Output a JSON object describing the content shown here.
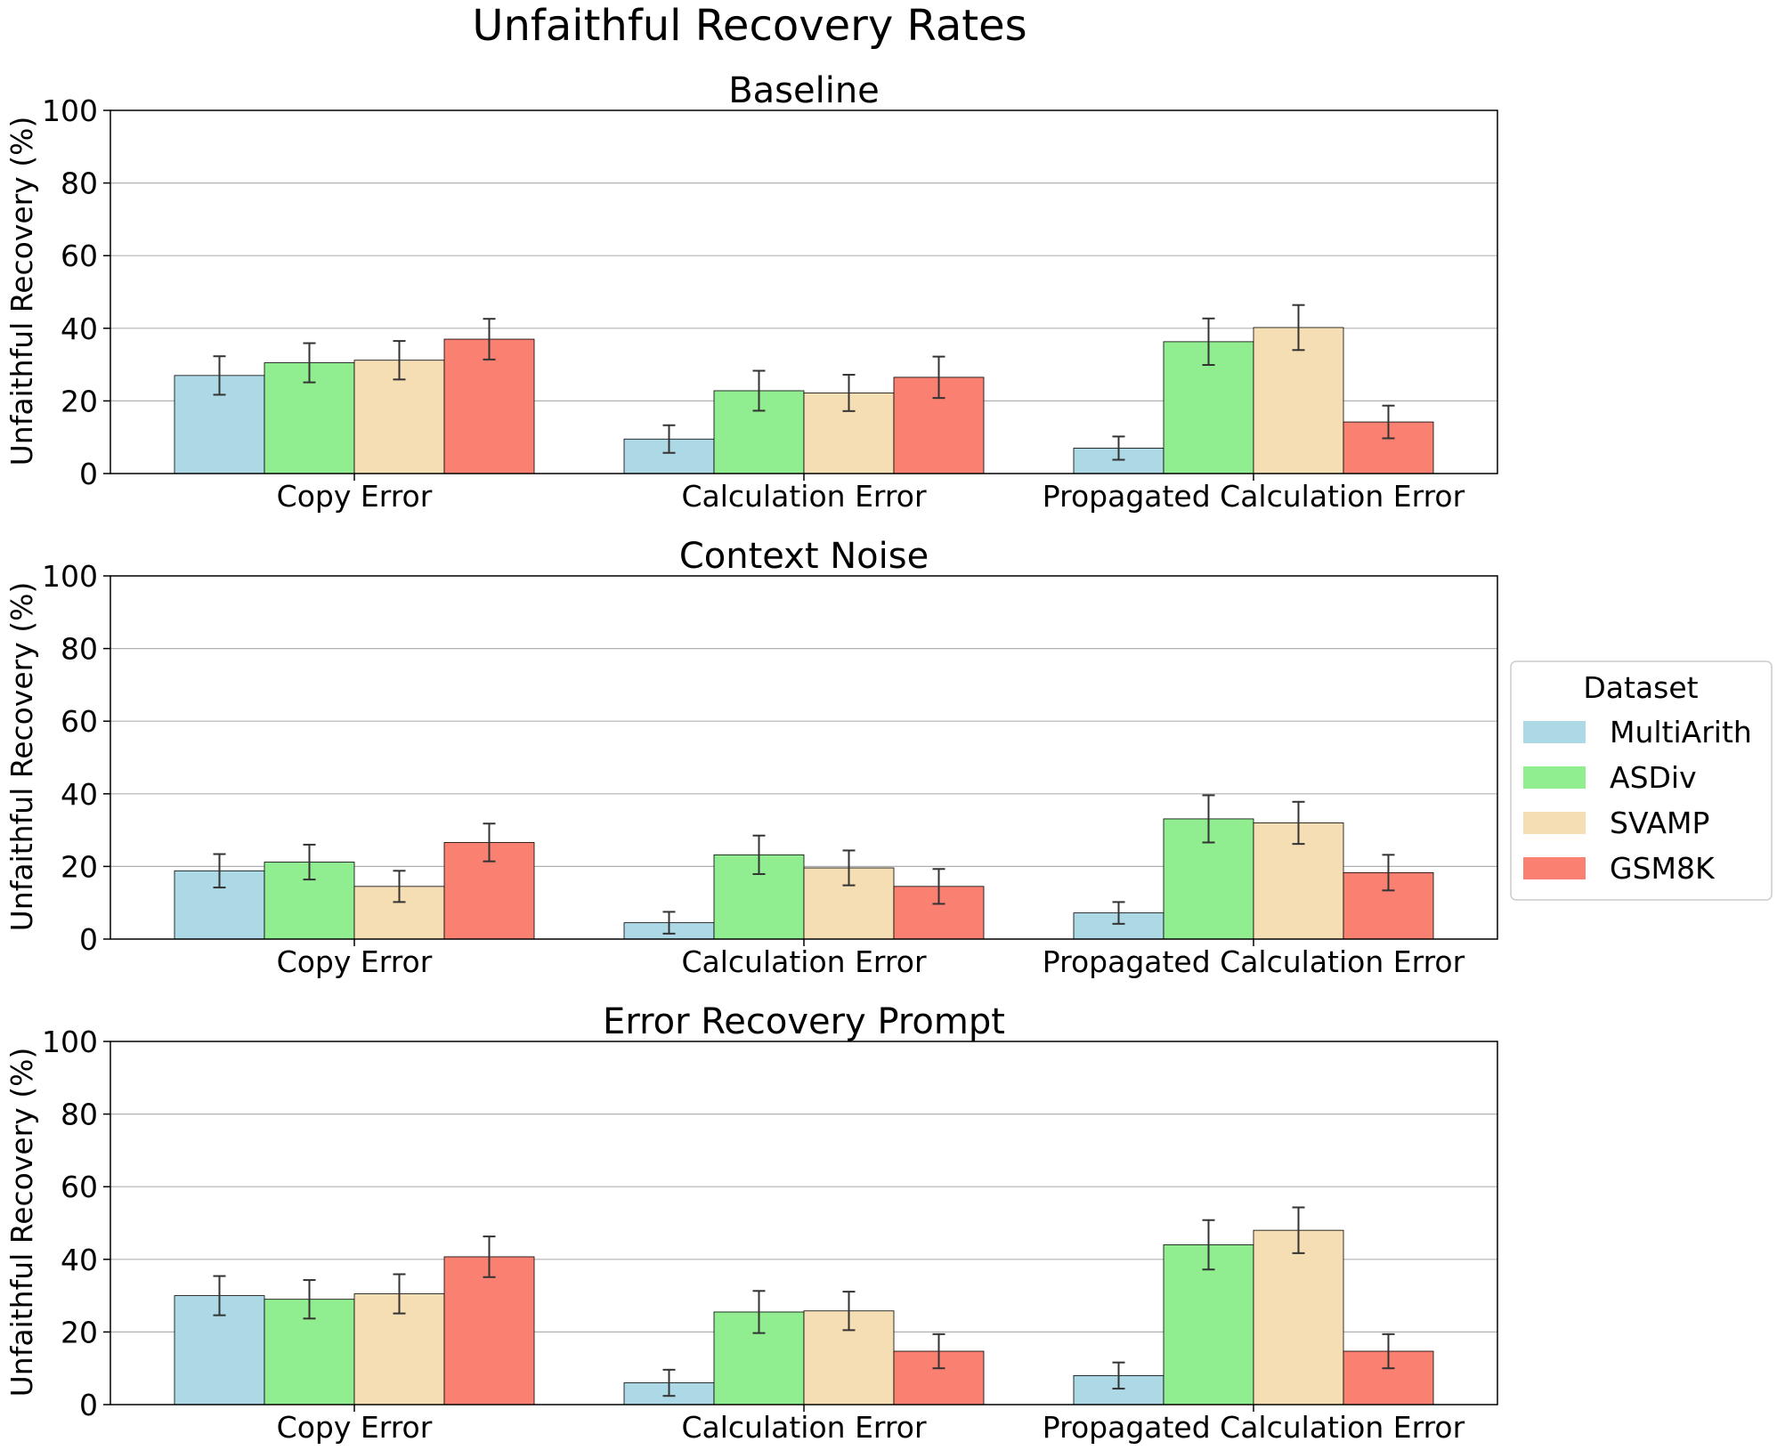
{
  "figure_title": "Unfaithful Recovery Rates",
  "legend": {
    "title": "Dataset",
    "entries": [
      {
        "name": "MultiArith",
        "color": "#add8e6"
      },
      {
        "name": "ASDiv",
        "color": "#90ee90"
      },
      {
        "name": "SVAMP",
        "color": "#f5deb3"
      },
      {
        "name": "GSM8K",
        "color": "#fa8072"
      }
    ]
  },
  "chart_data": [
    {
      "type": "bar",
      "title": "Baseline",
      "ylabel": "Unfaithful Recovery (%)",
      "xlabel": "",
      "ylim": [
        0,
        100
      ],
      "yticks": [
        0,
        20,
        40,
        60,
        80,
        100
      ],
      "grid": "y",
      "categories": [
        "Copy Error",
        "Calculation Error",
        "Propagated Calculation Error"
      ],
      "series": [
        {
          "name": "MultiArith",
          "values": [
            27,
            9.5,
            7
          ],
          "errors": [
            5.3,
            3.8,
            3.2
          ]
        },
        {
          "name": "ASDiv",
          "values": [
            30.5,
            22.8,
            36.3
          ],
          "errors": [
            5.4,
            5.5,
            6.4
          ]
        },
        {
          "name": "SVAMP",
          "values": [
            31.2,
            22.2,
            40.2
          ],
          "errors": [
            5.3,
            5.0,
            6.2
          ]
        },
        {
          "name": "GSM8K",
          "values": [
            37,
            26.5,
            14.2
          ],
          "errors": [
            5.6,
            5.7,
            4.5
          ]
        }
      ]
    },
    {
      "type": "bar",
      "title": "Context Noise",
      "ylabel": "Unfaithful Recovery (%)",
      "xlabel": "",
      "ylim": [
        0,
        100
      ],
      "yticks": [
        0,
        20,
        40,
        60,
        80,
        100
      ],
      "grid": "y",
      "categories": [
        "Copy Error",
        "Calculation Error",
        "Propagated Calculation Error"
      ],
      "series": [
        {
          "name": "MultiArith",
          "values": [
            18.8,
            4.5,
            7.2
          ],
          "errors": [
            4.6,
            3.0,
            3.0
          ]
        },
        {
          "name": "ASDiv",
          "values": [
            21.2,
            23.2,
            33.1
          ],
          "errors": [
            4.8,
            5.3,
            6.5
          ]
        },
        {
          "name": "SVAMP",
          "values": [
            14.5,
            19.6,
            32.0
          ],
          "errors": [
            4.3,
            4.8,
            5.8
          ]
        },
        {
          "name": "GSM8K",
          "values": [
            26.6,
            14.5,
            18.3
          ],
          "errors": [
            5.2,
            4.8,
            4.9
          ]
        }
      ]
    },
    {
      "type": "bar",
      "title": "Error Recovery Prompt",
      "ylabel": "Unfaithful Recovery (%)",
      "xlabel": "",
      "ylim": [
        0,
        100
      ],
      "yticks": [
        0,
        20,
        40,
        60,
        80,
        100
      ],
      "grid": "y",
      "categories": [
        "Copy Error",
        "Calculation Error",
        "Propagated Calculation Error"
      ],
      "series": [
        {
          "name": "MultiArith",
          "values": [
            30,
            6,
            8
          ],
          "errors": [
            5.4,
            3.6,
            3.6
          ]
        },
        {
          "name": "ASDiv",
          "values": [
            29,
            25.5,
            44
          ],
          "errors": [
            5.3,
            5.8,
            6.8
          ]
        },
        {
          "name": "SVAMP",
          "values": [
            30.5,
            25.8,
            48
          ],
          "errors": [
            5.4,
            5.3,
            6.3
          ]
        },
        {
          "name": "GSM8K",
          "values": [
            40.7,
            14.7,
            14.7
          ],
          "errors": [
            5.6,
            4.7,
            4.7
          ]
        }
      ]
    }
  ]
}
